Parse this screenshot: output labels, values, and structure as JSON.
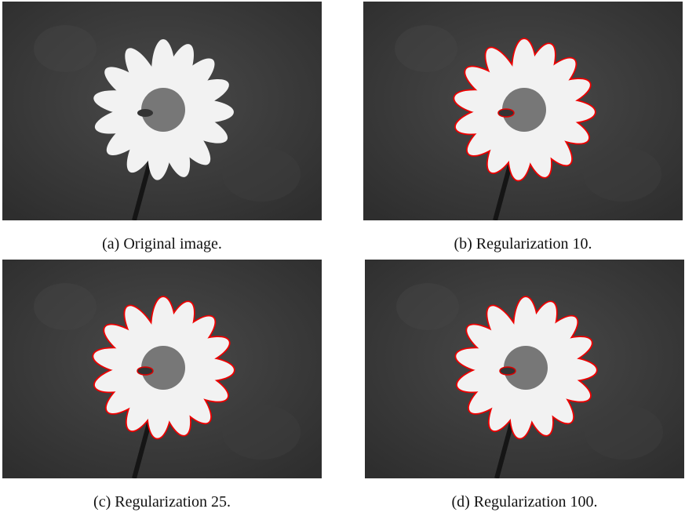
{
  "figures": [
    {
      "caption": "(a) Original image."
    },
    {
      "caption": "(b) Regularization 10."
    },
    {
      "caption": "(c) Regularization 25."
    },
    {
      "caption": "(d) Regularization 100."
    }
  ]
}
